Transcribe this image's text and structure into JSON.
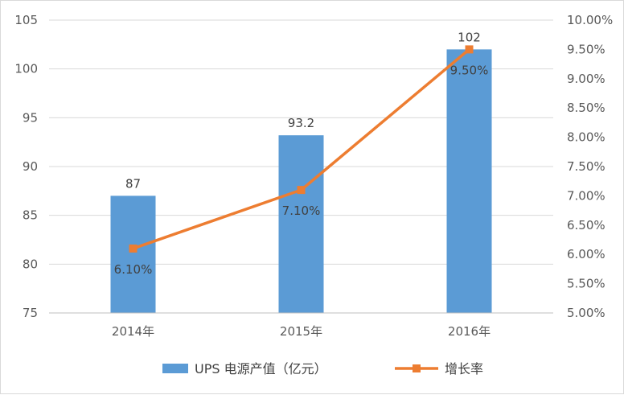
{
  "chart_data": {
    "type": "bar",
    "categories": [
      "2014年",
      "2015年",
      "2016年"
    ],
    "series": [
      {
        "name": "UPS 电源产值（亿元）",
        "type": "bar",
        "axis": "left",
        "values": [
          87,
          93.2,
          102
        ],
        "data_labels": [
          "87",
          "93.2",
          "102"
        ],
        "color": "#5b9bd5"
      },
      {
        "name": "增长率",
        "type": "line",
        "axis": "right",
        "values": [
          0.061,
          0.071,
          0.095
        ],
        "data_labels": [
          "6.10%",
          "7.10%",
          "9.50%"
        ],
        "color": "#ed7d31",
        "marker": "square"
      }
    ],
    "y_left": {
      "range": [
        75,
        105
      ],
      "ticks": [
        "75",
        "80",
        "85",
        "90",
        "95",
        "100",
        "105"
      ]
    },
    "y_right": {
      "range": [
        0.05,
        0.1
      ],
      "ticks": [
        "5.00%",
        "5.50%",
        "6.00%",
        "6.50%",
        "7.00%",
        "7.50%",
        "8.00%",
        "8.50%",
        "9.00%",
        "9.50%",
        "10.00%"
      ]
    },
    "grid": true,
    "legend_position": "bottom"
  }
}
